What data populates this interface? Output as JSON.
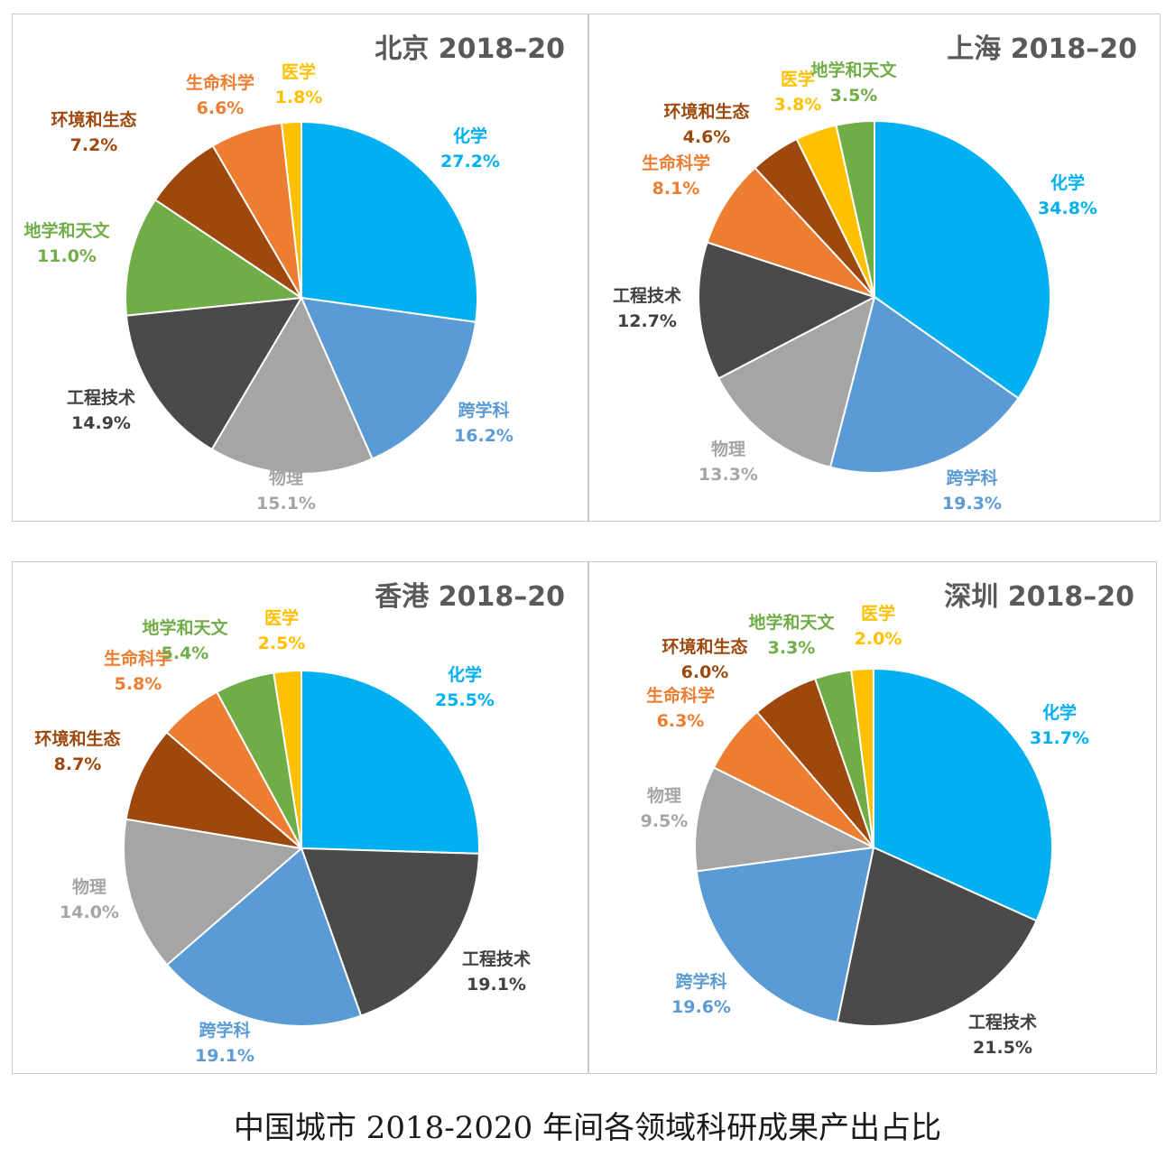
{
  "caption": "中国城市 2018-2020 年间各领域科研成果产出占比",
  "colors": {
    "化学": "#00b0f0",
    "跨学科": "#5b9bd5",
    "工程技术": "#4a4a4a",
    "物理": "#a5a5a5",
    "地学和天文": "#70ad47",
    "环境和生态": "#9e480e",
    "生命科学": "#ed7d31",
    "医学": "#ffc000"
  },
  "label_colors": {
    "化学": "#00b0f0",
    "跨学科": "#5b9bd5",
    "工程技术": "#404040",
    "物理": "#a5a5a5",
    "地学和天文": "#70ad47",
    "环境和生态": "#9e480e",
    "生命科学": "#ed7d31",
    "医学": "#ffc000"
  },
  "chart_data": [
    {
      "type": "pie",
      "title": "北京 2018–20",
      "slices": [
        {
          "label": "化学",
          "value": 27.2,
          "display": "27.2%"
        },
        {
          "label": "跨学科",
          "value": 16.2,
          "display": "16.2%"
        },
        {
          "label": "物理",
          "value": 15.1,
          "display": "15.1%"
        },
        {
          "label": "工程技术",
          "value": 14.9,
          "display": "14.9%"
        },
        {
          "label": "地学和天文",
          "value": 11.0,
          "display": "11.0%"
        },
        {
          "label": "环境和生态",
          "value": 7.2,
          "display": "7.2%"
        },
        {
          "label": "生命科学",
          "value": 6.6,
          "display": "6.6%"
        },
        {
          "label": "医学",
          "value": 1.8,
          "display": "1.8%"
        }
      ]
    },
    {
      "type": "pie",
      "title": "上海 2018–20",
      "slices": [
        {
          "label": "化学",
          "value": 34.8,
          "display": "34.8%"
        },
        {
          "label": "跨学科",
          "value": 19.3,
          "display": "19.3%"
        },
        {
          "label": "物理",
          "value": 13.3,
          "display": "13.3%"
        },
        {
          "label": "工程技术",
          "value": 12.7,
          "display": "12.7%"
        },
        {
          "label": "生命科学",
          "value": 8.1,
          "display": "8.1%"
        },
        {
          "label": "环境和生态",
          "value": 4.6,
          "display": "4.6%"
        },
        {
          "label": "医学",
          "value": 3.8,
          "display": "3.8%"
        },
        {
          "label": "地学和天文",
          "value": 3.5,
          "display": "3.5%"
        }
      ]
    },
    {
      "type": "pie",
      "title": "香港 2018–20",
      "slices": [
        {
          "label": "化学",
          "value": 25.5,
          "display": "25.5%"
        },
        {
          "label": "工程技术",
          "value": 19.1,
          "display": "19.1%"
        },
        {
          "label": "跨学科",
          "value": 19.1,
          "display": "19.1%"
        },
        {
          "label": "物理",
          "value": 14.0,
          "display": "14.0%"
        },
        {
          "label": "环境和生态",
          "value": 8.7,
          "display": "8.7%"
        },
        {
          "label": "生命科学",
          "value": 5.8,
          "display": "5.8%"
        },
        {
          "label": "地学和天文",
          "value": 5.4,
          "display": "5.4%"
        },
        {
          "label": "医学",
          "value": 2.5,
          "display": "2.5%"
        }
      ]
    },
    {
      "type": "pie",
      "title": "深圳 2018–20",
      "slices": [
        {
          "label": "化学",
          "value": 31.7,
          "display": "31.7%"
        },
        {
          "label": "工程技术",
          "value": 21.5,
          "display": "21.5%"
        },
        {
          "label": "跨学科",
          "value": 19.6,
          "display": "19.6%"
        },
        {
          "label": "物理",
          "value": 9.5,
          "display": "9.5%"
        },
        {
          "label": "生命科学",
          "value": 6.3,
          "display": "6.3%"
        },
        {
          "label": "环境和生态",
          "value": 6.0,
          "display": "6.0%"
        },
        {
          "label": "地学和天文",
          "value": 3.3,
          "display": "3.3%"
        },
        {
          "label": "医学",
          "value": 2.0,
          "display": "2.0%"
        }
      ]
    }
  ]
}
